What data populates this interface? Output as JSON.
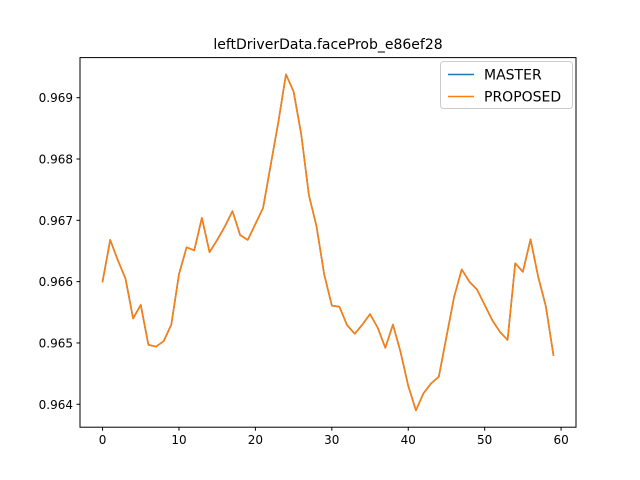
{
  "figure": {
    "background": "#ffffff",
    "text_color": "#000000",
    "spine_color": "#000000"
  },
  "chart_data": {
    "type": "line",
    "title": "leftDriverData.faceProb_e86ef28",
    "xlabel": "",
    "ylabel": "",
    "grid": false,
    "xlim": [
      -2.95,
      61.95
    ],
    "ylim": [
      0.963626,
      0.969654
    ],
    "xticks": [
      0,
      10,
      20,
      30,
      40,
      50,
      60
    ],
    "xtick_labels": [
      "0",
      "10",
      "20",
      "30",
      "40",
      "50",
      "60"
    ],
    "yticks": [
      0.964,
      0.965,
      0.966,
      0.967,
      0.968,
      0.969
    ],
    "ytick_labels": [
      "0.964",
      "0.965",
      "0.966",
      "0.967",
      "0.968",
      "0.969"
    ],
    "legend": {
      "position": "upper right",
      "entries": [
        {
          "label": "MASTER",
          "color": "#1f77b4"
        },
        {
          "label": "PROPOSED",
          "color": "#ff7f0e"
        }
      ]
    },
    "x": [
      0,
      1,
      2,
      3,
      4,
      5,
      6,
      7,
      8,
      9,
      10,
      11,
      12,
      13,
      14,
      15,
      16,
      17,
      18,
      19,
      20,
      21,
      22,
      23,
      24,
      25,
      26,
      27,
      28,
      29,
      30,
      31,
      32,
      33,
      34,
      35,
      36,
      37,
      38,
      39,
      40,
      41,
      42,
      43,
      44,
      45,
      46,
      47,
      48,
      49,
      50,
      51,
      52,
      53,
      54,
      55,
      56,
      57,
      58,
      59
    ],
    "series": [
      {
        "name": "MASTER",
        "color": "#1f77b4",
        "values": [
          0.966,
          0.96668,
          0.96635,
          0.96605,
          0.9654,
          0.96562,
          0.96497,
          0.96494,
          0.96503,
          0.9653,
          0.96612,
          0.96656,
          0.96651,
          0.96704,
          0.96648,
          0.96668,
          0.9669,
          0.96715,
          0.96676,
          0.96668,
          0.96694,
          0.9672,
          0.9679,
          0.9686,
          0.96938,
          0.9691,
          0.9684,
          0.96741,
          0.9669,
          0.96612,
          0.96561,
          0.96559,
          0.96529,
          0.96515,
          0.9653,
          0.96547,
          0.96525,
          0.96492,
          0.9653,
          0.96485,
          0.9643,
          0.9639,
          0.96418,
          0.96434,
          0.96445,
          0.9651,
          0.96575,
          0.9662,
          0.966,
          0.96587,
          0.96562,
          0.96537,
          0.96518,
          0.96505,
          0.9663,
          0.96616,
          0.96669,
          0.96608,
          0.9656,
          0.9648
        ]
      },
      {
        "name": "PROPOSED",
        "color": "#ff7f0e",
        "values": [
          0.966,
          0.96668,
          0.96635,
          0.96605,
          0.9654,
          0.96562,
          0.96497,
          0.96494,
          0.96503,
          0.9653,
          0.96612,
          0.96656,
          0.96651,
          0.96704,
          0.96648,
          0.96668,
          0.9669,
          0.96715,
          0.96676,
          0.96668,
          0.96694,
          0.9672,
          0.9679,
          0.9686,
          0.96938,
          0.9691,
          0.9684,
          0.96741,
          0.9669,
          0.96612,
          0.96561,
          0.96559,
          0.96529,
          0.96515,
          0.9653,
          0.96547,
          0.96525,
          0.96492,
          0.9653,
          0.96485,
          0.9643,
          0.9639,
          0.96418,
          0.96434,
          0.96445,
          0.9651,
          0.96575,
          0.9662,
          0.966,
          0.96587,
          0.96562,
          0.96537,
          0.96518,
          0.96505,
          0.9663,
          0.96616,
          0.96669,
          0.96608,
          0.9656,
          0.9648
        ]
      }
    ]
  }
}
